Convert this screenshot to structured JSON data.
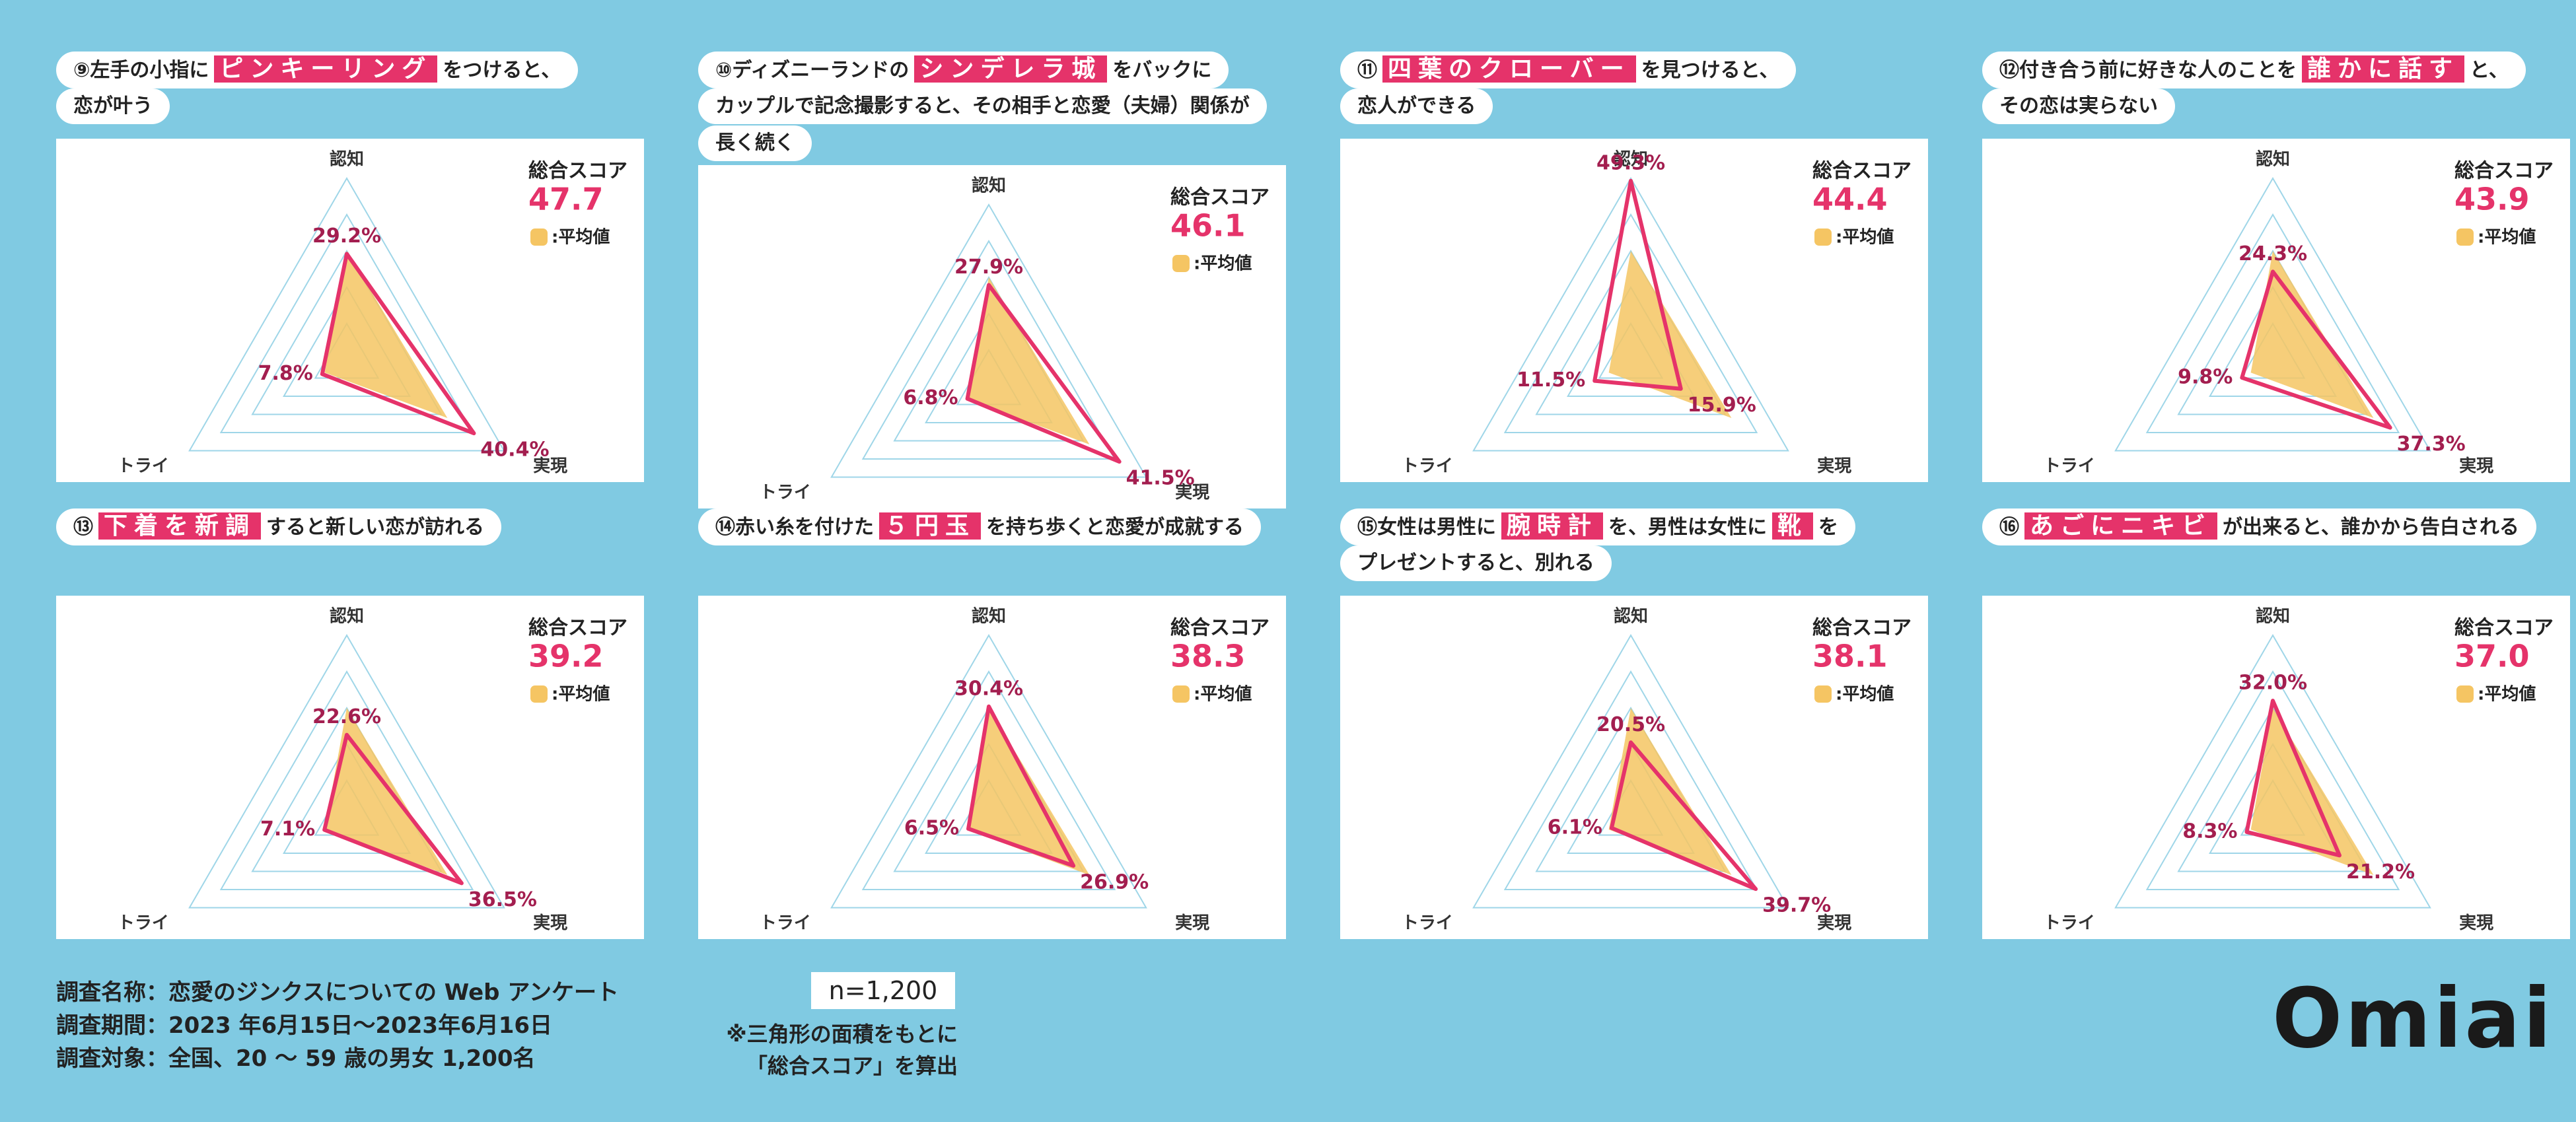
{
  "chart_data": [
    {
      "type": "radar",
      "title_lines": [
        [
          {
            "text": "⑨左手の小指に"
          },
          {
            "text": "ピンキーリング",
            "highlight": true
          },
          {
            "text": "をつけると、"
          }
        ],
        [
          {
            "text": "恋が叶う"
          }
        ]
      ],
      "categories": [
        "認知",
        "トライ",
        "実現"
      ],
      "score_label": "総合スコア",
      "score": 47.7,
      "rlim": [
        0,
        50
      ],
      "rticks": [
        10,
        20,
        30,
        40,
        50
      ],
      "series": [
        {
          "name": ":平均値",
          "color": "#f5c563",
          "values": [
            30,
            7,
            32
          ]
        },
        {
          "color": "#e5336a",
          "values": [
            29.2,
            7.8,
            40.4
          ],
          "value_labels": [
            "29.2%",
            "7.8%",
            "40.4%"
          ]
        }
      ]
    },
    {
      "type": "radar",
      "title_lines": [
        [
          {
            "text": "⑩ディズニーランドの"
          },
          {
            "text": "シンデレラ城",
            "highlight": true
          },
          {
            "text": "をバックに"
          }
        ],
        [
          {
            "text": "カップルで記念撮影すると、その相手と恋愛（夫婦）関係が"
          }
        ],
        [
          {
            "text": "長く続く"
          }
        ]
      ],
      "categories": [
        "認知",
        "トライ",
        "実現"
      ],
      "score_label": "総合スコア",
      "score": 46.1,
      "rlim": [
        0,
        50
      ],
      "rticks": [
        10,
        20,
        30,
        40,
        50
      ],
      "series": [
        {
          "name": ":平均値",
          "color": "#f5c563",
          "values": [
            30,
            7,
            32
          ]
        },
        {
          "color": "#e5336a",
          "values": [
            27.9,
            6.8,
            41.5
          ],
          "value_labels": [
            "27.9%",
            "6.8%",
            "41.5%"
          ]
        }
      ]
    },
    {
      "type": "radar",
      "title_lines": [
        [
          {
            "text": "⑪"
          },
          {
            "text": "四葉のクローバー",
            "highlight": true
          },
          {
            "text": "を見つけると、"
          }
        ],
        [
          {
            "text": "恋人ができる"
          }
        ]
      ],
      "categories": [
        "認知",
        "トライ",
        "実現"
      ],
      "score_label": "総合スコア",
      "score": 44.4,
      "rlim": [
        0,
        50
      ],
      "rticks": [
        10,
        20,
        30,
        40,
        50
      ],
      "series": [
        {
          "name": ":平均値",
          "color": "#f5c563",
          "values": [
            30,
            7,
            32
          ]
        },
        {
          "color": "#e5336a",
          "values": [
            49.3,
            11.5,
            15.9
          ],
          "value_labels": [
            "49.3%",
            "11.5%",
            "15.9%"
          ]
        }
      ]
    },
    {
      "type": "radar",
      "title_lines": [
        [
          {
            "text": "⑫付き合う前に好きな人のことを"
          },
          {
            "text": "誰かに話す",
            "highlight": true
          },
          {
            "text": "と、"
          }
        ],
        [
          {
            "text": "その恋は実らない"
          }
        ]
      ],
      "categories": [
        "認知",
        "トライ",
        "実現"
      ],
      "score_label": "総合スコア",
      "score": 43.9,
      "rlim": [
        0,
        50
      ],
      "rticks": [
        10,
        20,
        30,
        40,
        50
      ],
      "series": [
        {
          "name": ":平均値",
          "color": "#f5c563",
          "values": [
            30,
            7,
            32
          ]
        },
        {
          "color": "#e5336a",
          "values": [
            24.3,
            9.8,
            37.3
          ],
          "value_labels": [
            "24.3%",
            "9.8%",
            "37.3%"
          ]
        }
      ]
    },
    {
      "type": "radar",
      "title_lines": [
        [
          {
            "text": "⑬"
          },
          {
            "text": "下着を新調",
            "highlight": true
          },
          {
            "text": "すると新しい恋が訪れる"
          }
        ]
      ],
      "categories": [
        "認知",
        "トライ",
        "実現"
      ],
      "score_label": "総合スコア",
      "score": 39.2,
      "rlim": [
        0,
        50
      ],
      "rticks": [
        10,
        20,
        30,
        40,
        50
      ],
      "series": [
        {
          "name": ":平均値",
          "color": "#f5c563",
          "values": [
            30,
            7,
            32
          ]
        },
        {
          "color": "#e5336a",
          "values": [
            22.6,
            7.1,
            36.5
          ],
          "value_labels": [
            "22.6%",
            "7.1%",
            "36.5%"
          ]
        }
      ]
    },
    {
      "type": "radar",
      "title_lines": [
        [
          {
            "text": "⑭赤い糸を付けた"
          },
          {
            "text": "５円玉",
            "highlight": true
          },
          {
            "text": "を持ち歩くと恋愛が成就する"
          }
        ]
      ],
      "categories": [
        "認知",
        "トライ",
        "実現"
      ],
      "score_label": "総合スコア",
      "score": 38.3,
      "rlim": [
        0,
        50
      ],
      "rticks": [
        10,
        20,
        30,
        40,
        50
      ],
      "series": [
        {
          "name": ":平均値",
          "color": "#f5c563",
          "values": [
            30,
            7,
            32
          ]
        },
        {
          "color": "#e5336a",
          "values": [
            30.4,
            6.5,
            26.9
          ],
          "value_labels": [
            "30.4%",
            "6.5%",
            "26.9%"
          ]
        }
      ]
    },
    {
      "type": "radar",
      "title_lines": [
        [
          {
            "text": "⑮女性は男性に"
          },
          {
            "text": "腕時計",
            "highlight": true
          },
          {
            "text": "を、男性は女性に"
          },
          {
            "text": "靴",
            "highlight": true
          },
          {
            "text": "を"
          }
        ],
        [
          {
            "text": "プレゼントすると、別れる"
          }
        ]
      ],
      "categories": [
        "認知",
        "トライ",
        "実現"
      ],
      "score_label": "総合スコア",
      "score": 38.1,
      "rlim": [
        0,
        50
      ],
      "rticks": [
        10,
        20,
        30,
        40,
        50
      ],
      "series": [
        {
          "name": ":平均値",
          "color": "#f5c563",
          "values": [
            30,
            7,
            32
          ]
        },
        {
          "color": "#e5336a",
          "values": [
            20.5,
            6.1,
            39.7
          ],
          "value_labels": [
            "20.5%",
            "6.1%",
            "39.7%"
          ]
        }
      ]
    },
    {
      "type": "radar",
      "title_lines": [
        [
          {
            "text": "⑯"
          },
          {
            "text": "あごにニキビ",
            "highlight": true
          },
          {
            "text": "が出来ると、誰かから告白される"
          }
        ]
      ],
      "categories": [
        "認知",
        "トライ",
        "実現"
      ],
      "score_label": "総合スコア",
      "score": 37,
      "score_value_label": "37.0",
      "rlim": [
        0,
        50
      ],
      "rticks": [
        10,
        20,
        30,
        40,
        50
      ],
      "series": [
        {
          "name": ":平均値",
          "color": "#f5c563",
          "values": [
            30,
            7,
            32
          ]
        },
        {
          "color": "#e5336a",
          "values": [
            32.0,
            8.3,
            21.2
          ],
          "value_labels": [
            "32.0%",
            "8.3%",
            "21.2%"
          ]
        }
      ]
    }
  ],
  "footer": {
    "survey": [
      "調査名称：恋愛のジンクスについての Web アンケート",
      "調査期間：2023 年6月15日～2023年6月16日",
      "調査対象：全国、20 ～ 59 歳の男女 1,200名"
    ],
    "sample": "n=1,200",
    "note": [
      "※三角形の面積をもとに",
      "「総合スコア」を算出"
    ],
    "logo": "Omiai"
  }
}
